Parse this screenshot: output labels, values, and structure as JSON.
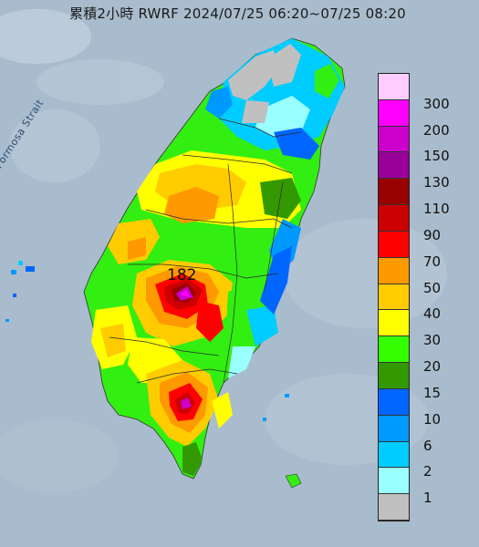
{
  "title": "累積2小時 RWRF 2024/07/25 06:20~07/25 08:20",
  "map_labels": {
    "strait": "Formosa Strait",
    "max_value": "182"
  },
  "legend": {
    "items": [
      {
        "label": "300",
        "color": "#ffccff"
      },
      {
        "label": "200",
        "color": "#ff00ff"
      },
      {
        "label": "150",
        "color": "#cc00cc"
      },
      {
        "label": "130",
        "color": "#990099"
      },
      {
        "label": "110",
        "color": "#990000"
      },
      {
        "label": "90",
        "color": "#cc0000"
      },
      {
        "label": "70",
        "color": "#ff0000"
      },
      {
        "label": "50",
        "color": "#ff9900"
      },
      {
        "label": "40",
        "color": "#ffcc00"
      },
      {
        "label": "30",
        "color": "#ffff00"
      },
      {
        "label": "20",
        "color": "#33ff00"
      },
      {
        "label": "15",
        "color": "#339900"
      },
      {
        "label": "10",
        "color": "#0066ff"
      },
      {
        "label": "6",
        "color": "#0099ff"
      },
      {
        "label": "2",
        "color": "#00ccff"
      },
      {
        "label": "1",
        "color": "#99ffff"
      },
      {
        "label": "",
        "color": "#c0c0c0"
      }
    ]
  },
  "colors": {
    "sea": "#a9bccd",
    "land_dry": "#c0c0c0"
  }
}
